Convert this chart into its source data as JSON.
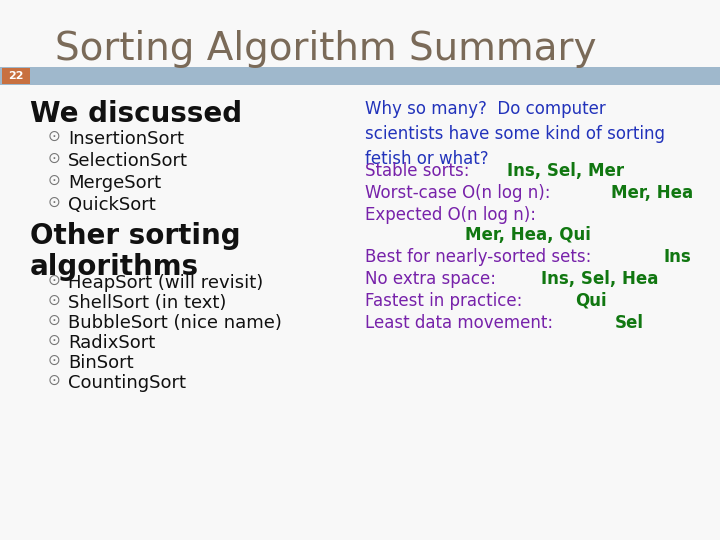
{
  "title": "Sorting Algorithm Summary",
  "title_color": "#7a6a58",
  "title_fontsize": 28,
  "slide_number": "22",
  "slide_number_bg": "#c87040",
  "header_bar_color": "#9fb8cc",
  "background_color": "#f8f8f8",
  "left_col": {
    "heading1": "We discussed",
    "heading1_color": "#111111",
    "heading1_fontsize": 20,
    "items1": [
      "InsertionSort",
      "SelectionSort",
      "MergeSort",
      "QuickSort"
    ],
    "items1_color": "#111111",
    "items1_fontsize": 13,
    "heading2": "Other sorting\nalgorithms",
    "heading2_color": "#111111",
    "heading2_fontsize": 20,
    "items2": [
      "HeapSort (will revisit)",
      "ShellSort (in text)",
      "BubbleSort (nice name)",
      "RadixSort",
      "BinSort",
      "CountingSort"
    ],
    "items2_color": "#111111",
    "items2_fontsize": 13
  },
  "right_col": {
    "intro_text": "Why so many?  Do computer\nscientists have some kind of sorting\nfetish or what?",
    "intro_color": "#2233bb",
    "intro_fontsize": 12,
    "line1_prefix": "Stable sorts: ",
    "line1_prefix_color": "#7722aa",
    "line1_suffix": "Ins, Sel, Mer",
    "line1_suffix_color": "#117711",
    "line1_fontsize": 12,
    "line2_prefix": "Worst-case O(n log n): ",
    "line2_prefix_color": "#7722aa",
    "line2_suffix": "Mer, Hea",
    "line2_suffix_color": "#117711",
    "line2_fontsize": 12,
    "line3_prefix": "Expected O(n log n):",
    "line3_prefix_color": "#7722aa",
    "line3_fontsize": 12,
    "line3b_text": "Mer, Hea, Qui",
    "line3b_color": "#117711",
    "line3b_fontsize": 12,
    "line4_prefix": "Best for nearly-sorted sets: ",
    "line4_prefix_color": "#7722aa",
    "line4_suffix": "Ins",
    "line4_suffix_color": "#117711",
    "line4_fontsize": 12,
    "line5_prefix": "No extra space: ",
    "line5_prefix_color": "#7722aa",
    "line5_suffix": "Ins, Sel, Hea",
    "line5_suffix_color": "#117711",
    "line5_fontsize": 12,
    "line6_prefix": "Fastest in practice: ",
    "line6_prefix_color": "#7722aa",
    "line6_suffix": "Qui",
    "line6_suffix_color": "#117711",
    "line6_fontsize": 12,
    "line7_prefix": "Least data movement: ",
    "line7_prefix_color": "#7722aa",
    "line7_suffix": "Sel",
    "line7_suffix_color": "#117711",
    "line7_fontsize": 12
  }
}
